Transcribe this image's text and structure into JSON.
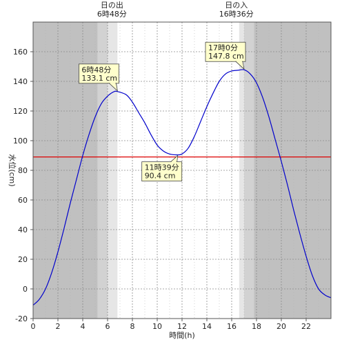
{
  "chart_data": {
    "type": "line",
    "xlabel": "時間(h)",
    "ylabel": "水位(cm)",
    "xlim": [
      0,
      24
    ],
    "ylim": [
      -20,
      180
    ],
    "x_ticks": [
      0,
      2,
      4,
      6,
      8,
      10,
      12,
      14,
      16,
      18,
      20,
      22
    ],
    "y_ticks": [
      -20,
      0,
      20,
      40,
      60,
      80,
      100,
      120,
      140,
      160
    ],
    "sunrise": {
      "label": "日の出",
      "time_text": "6時48分",
      "hour": 6.8
    },
    "sunset": {
      "label": "日の入",
      "time_text": "16時36分",
      "hour": 16.6
    },
    "reference_line": {
      "value": 89,
      "color": "#dd0000"
    },
    "line_color": "#0000cc",
    "annotations": [
      {
        "name": "high-tide-1",
        "time_text": "6時48分",
        "level_text": "133.1 cm",
        "x": 6.8,
        "y": 133.1,
        "box_side": "upper-left"
      },
      {
        "name": "low-tide",
        "time_text": "11時39分",
        "level_text": "90.4 cm",
        "x": 11.65,
        "y": 90.4,
        "box_side": "lower-left"
      },
      {
        "name": "high-tide-2",
        "time_text": "17時0分",
        "level_text": "147.8 cm",
        "x": 17.0,
        "y": 147.8,
        "box_side": "upper-left"
      }
    ],
    "series": [
      {
        "x": [
          0,
          0.5,
          1,
          1.5,
          2,
          2.5,
          3,
          3.5,
          4,
          4.5,
          5,
          5.5,
          6,
          6.5,
          6.8,
          7.5,
          8,
          8.5,
          9,
          9.5,
          10,
          10.5,
          11,
          11.65,
          12,
          12.5,
          13,
          13.5,
          14,
          14.5,
          15,
          15.5,
          16,
          16.5,
          17,
          17.5,
          18,
          18.5,
          19,
          19.5,
          20,
          20.5,
          21,
          21.5,
          22,
          22.5,
          23,
          23.5,
          24
        ],
        "y": [
          -11,
          -7,
          0,
          11,
          25,
          41,
          58,
          74,
          90,
          104,
          116,
          125,
          130,
          133,
          133.1,
          131,
          126,
          119,
          112,
          104,
          97,
          93,
          91,
          90.4,
          91,
          95,
          103,
          113,
          123,
          132,
          140,
          145,
          147,
          147.5,
          147.8,
          145,
          139,
          129,
          116,
          101,
          86,
          70,
          53,
          37,
          22,
          9,
          0,
          -4,
          -6
        ]
      }
    ]
  }
}
